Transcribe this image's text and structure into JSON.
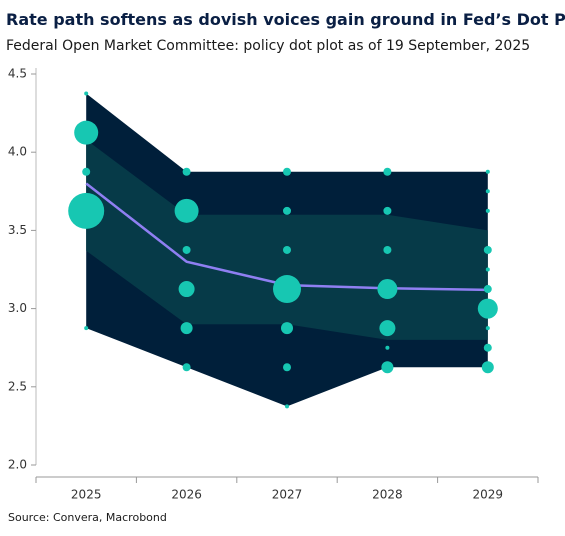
{
  "chart_data": {
    "type": "dot_plot",
    "title": "Rate path softens as dovish voices gain ground in Fed’s Dot Plot",
    "subtitle": "Federal Open Market Committee: policy dot plot as of 19 September, 2025",
    "source": "Source: Convera, Macrobond",
    "categories": [
      "2025",
      "2026",
      "2027",
      "2028",
      "2029"
    ],
    "ylim": [
      2.0,
      4.5
    ],
    "yticks": [
      {
        "value": 2.0,
        "label": "2.0"
      },
      2.5,
      {
        "value": 3.0,
        "label": "3.0"
      },
      3.5,
      {
        "value": 4.0,
        "label": "4.0"
      },
      4.5
    ],
    "outer_band": {
      "color": "#001f3a",
      "upper": [
        4.375,
        3.875,
        3.875,
        3.875,
        3.875
      ],
      "lower": [
        2.875,
        2.625,
        2.375,
        2.625,
        2.625
      ]
    },
    "inner_band": {
      "color": "#063a48",
      "upper": [
        4.08,
        3.6,
        3.6,
        3.6,
        3.5
      ],
      "lower": [
        3.37,
        2.9,
        2.9,
        2.8,
        2.8
      ]
    },
    "median": {
      "color": "#8f7ff2",
      "values": [
        3.8,
        3.3,
        3.15,
        3.13,
        3.12
      ]
    },
    "dot_color": "#17c7b2",
    "dots": [
      {
        "values": [
          4.375,
          4.125,
          3.875,
          3.625,
          2.875
        ],
        "counts": [
          1,
          6,
          2,
          9,
          1
        ]
      },
      {
        "values": [
          3.875,
          3.625,
          3.375,
          3.125,
          2.875,
          2.625
        ],
        "counts": [
          2,
          6,
          2,
          4,
          3,
          2
        ]
      },
      {
        "values": [
          3.875,
          3.625,
          3.375,
          3.125,
          2.875,
          2.625,
          2.375
        ],
        "counts": [
          2,
          2,
          2,
          7,
          3,
          2,
          1
        ]
      },
      {
        "values": [
          3.875,
          3.625,
          3.375,
          3.125,
          2.875,
          2.75,
          2.625
        ],
        "counts": [
          2,
          2,
          2,
          5,
          4,
          1,
          3
        ]
      },
      {
        "values": [
          3.875,
          3.75,
          3.625,
          3.375,
          3.25,
          3.125,
          3.0,
          2.875,
          2.75,
          2.625
        ],
        "counts": [
          1,
          1,
          1,
          2,
          1,
          2,
          5,
          1,
          2,
          3
        ]
      }
    ]
  }
}
